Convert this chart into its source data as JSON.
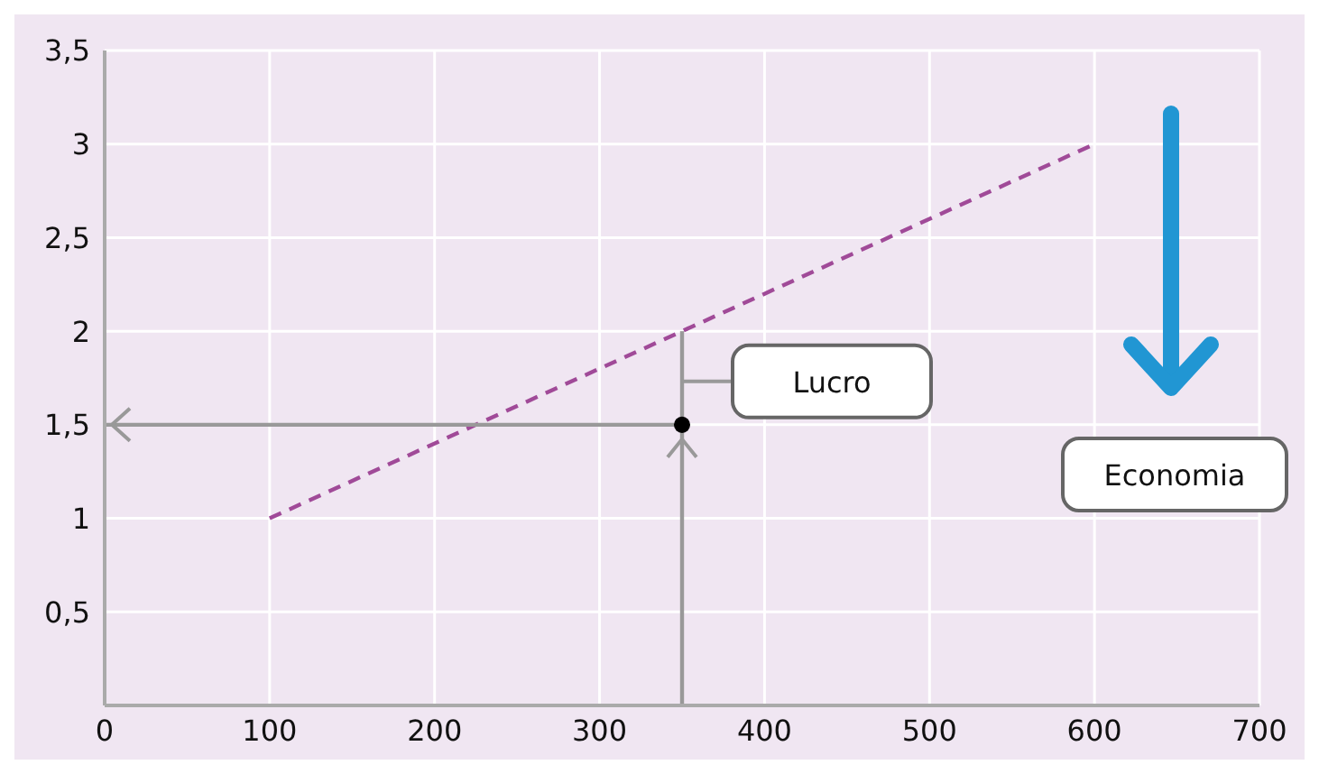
{
  "chart_data": {
    "type": "line",
    "xlim": [
      0,
      700
    ],
    "xticks": [
      0,
      100,
      200,
      300,
      400,
      500,
      600,
      700
    ],
    "ylim": [
      0,
      3.5
    ],
    "yticks": [
      {
        "value": 0.5,
        "label": "0,5"
      },
      1,
      {
        "value": 1.5,
        "label": "1,5"
      },
      2,
      {
        "value": 2.5,
        "label": "2,5"
      },
      3,
      {
        "value": 3.5,
        "label": "3,5"
      }
    ],
    "grid": true,
    "series": [
      {
        "x": [
          100,
          600
        ],
        "values": [
          1,
          3
        ],
        "color": "#a04a98",
        "line_style": "dashed",
        "marker": "none"
      },
      {
        "x": [
          350,
          0
        ],
        "values": [
          1.5,
          1.5
        ],
        "color": "#999999",
        "line_style": "solid",
        "marker": "none"
      },
      {
        "x": [
          350,
          350
        ],
        "values": [
          0,
          1.5
        ],
        "color": "#999999",
        "line_style": "solid",
        "marker": "none"
      },
      {
        "x": [
          350,
          350
        ],
        "values": [
          1.5,
          2
        ],
        "color": "#999999",
        "line_style": "solid",
        "marker": "none"
      },
      {
        "type": "scatter",
        "x": [
          350
        ],
        "values": [
          1.5
        ],
        "color": "#000000",
        "marker": "circle"
      }
    ],
    "annotations": [
      "Lucro",
      "Economia"
    ]
  }
}
